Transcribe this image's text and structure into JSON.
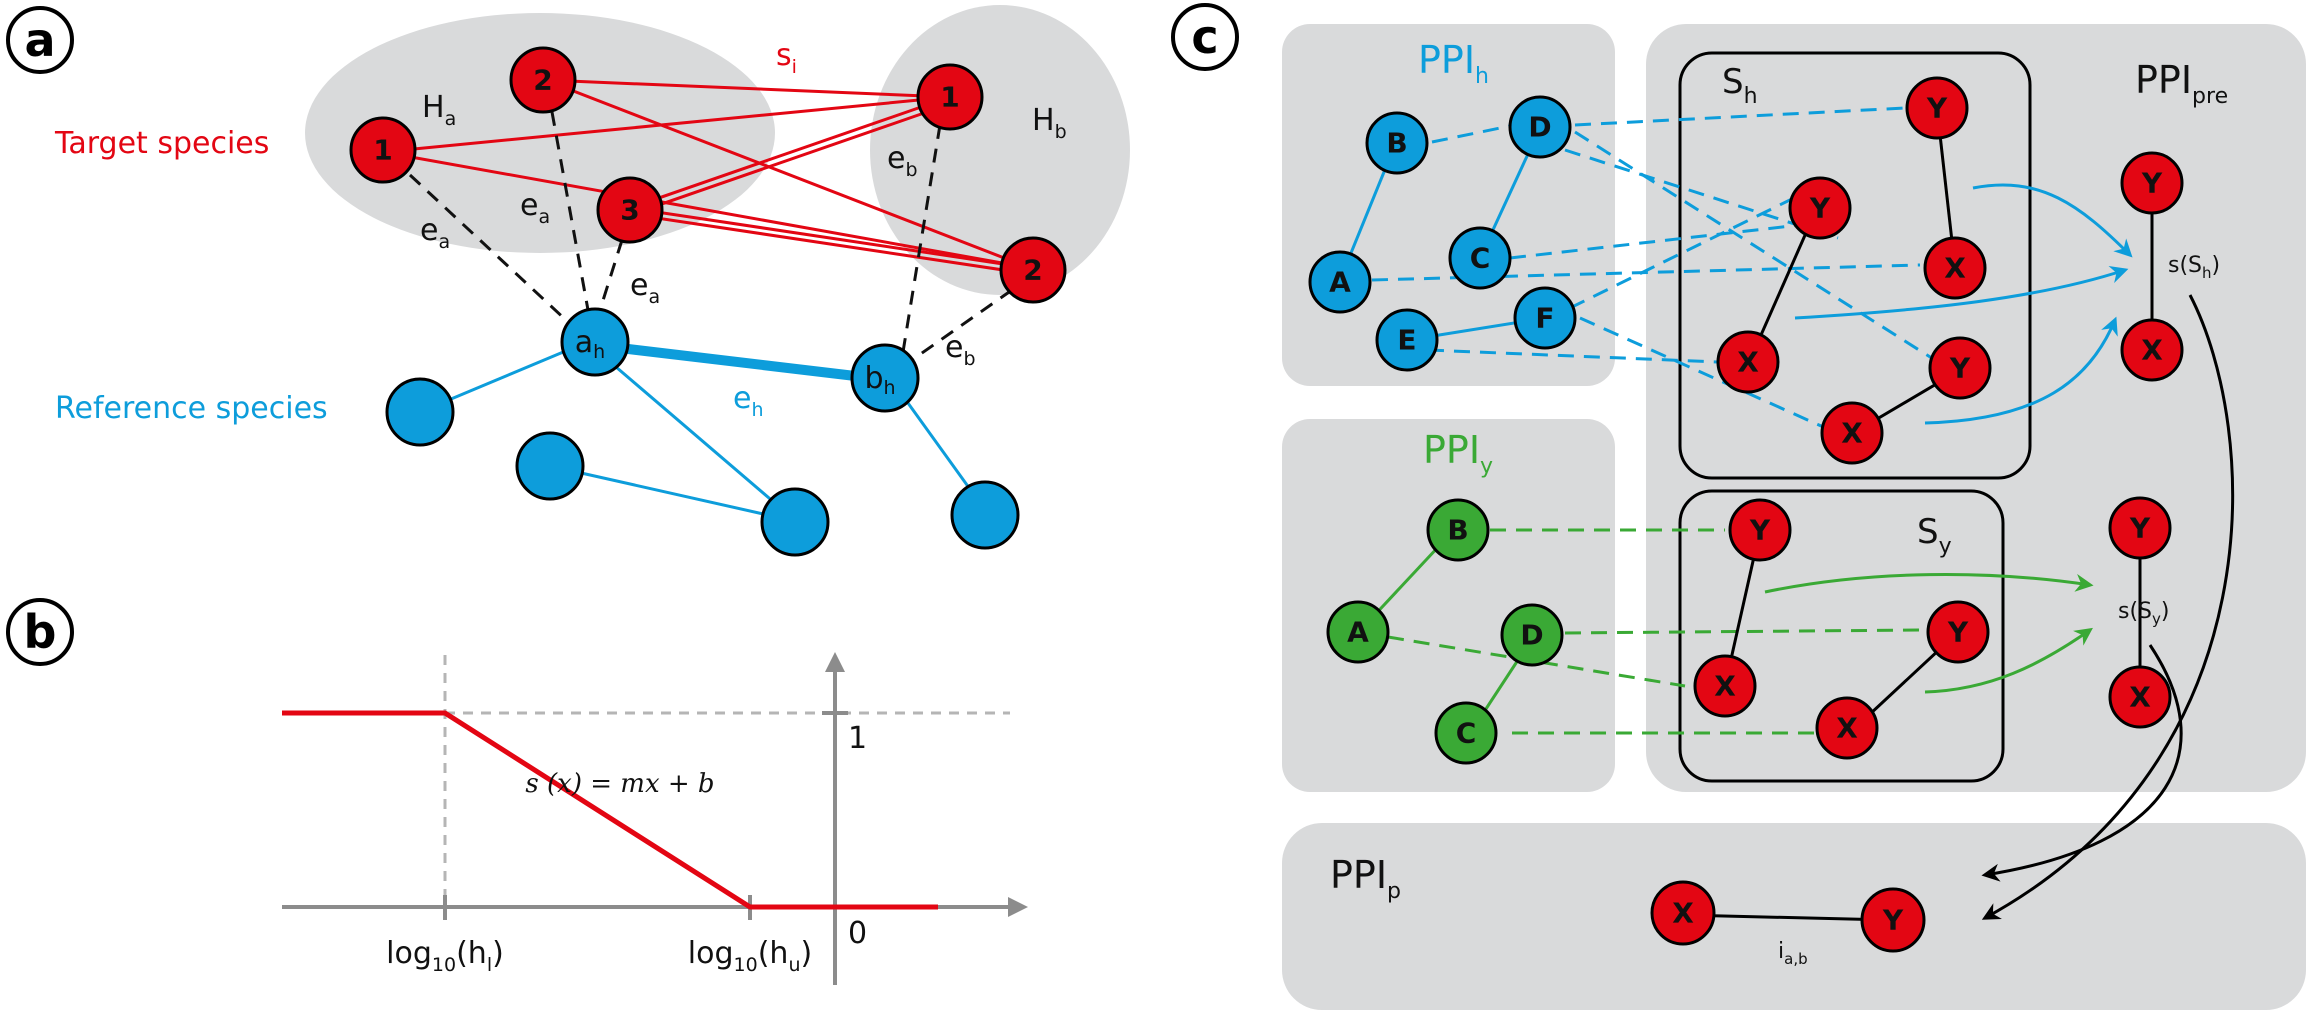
{
  "colors": {
    "target": "#e30613",
    "reference": "#0d9ddb",
    "yeast": "#3aa935",
    "panel_bg": "#d9dadb",
    "line_gray": "#8c8c8c",
    "dash_gray": "#b5b5b5",
    "text": "#111111"
  },
  "panel_a": {
    "letter": "a",
    "cluster_a": "H",
    "cluster_a_sub": "a",
    "cluster_b": "H",
    "cluster_b_sub": "b",
    "s": "s",
    "s_sub": "i",
    "target_species": "Target species",
    "reference_species": "Reference species",
    "e": "e",
    "e_sub_a": "a",
    "e_sub_b": "b",
    "e_sub_h": "h",
    "nodes_target": [
      "1",
      "2",
      "3",
      "1",
      "2"
    ],
    "node_ah": "a",
    "node_ah_sub": "h",
    "node_bh": "b",
    "node_bh_sub": "h"
  },
  "panel_b": {
    "letter": "b",
    "formula": "s (x) = mx + b",
    "x_label_left": "log",
    "x_label_left_base": "10",
    "x_label_left_arg": "(h",
    "x_label_left_sub": "l",
    "x_label_right": "log",
    "x_label_right_base": "10",
    "x_label_right_arg": "(h",
    "x_label_right_sub": "u",
    "close_paren": ")",
    "y_one": "1",
    "y_zero": "0"
  },
  "panel_c": {
    "letter": "c",
    "ppi": "PPI",
    "ppi_h_sub": "h",
    "ppi_y_sub": "y",
    "ppi_pre_sub": "pre",
    "ppi_p_sub": "p",
    "s_h": "S",
    "s_h_sub": "h",
    "s_y": "S",
    "s_y_sub": "y",
    "score_h": "s(S",
    "score_h_sub": "h",
    "score_y": "s(S",
    "score_y_sub": "y",
    "close_paren": ")",
    "i_label": "i",
    "i_sub": "a,b",
    "blue_nodes": [
      "B",
      "D",
      "A",
      "C",
      "E",
      "F"
    ],
    "green_nodes": [
      "B",
      "A",
      "D",
      "C"
    ],
    "red_x": "X",
    "red_y": "Y"
  }
}
